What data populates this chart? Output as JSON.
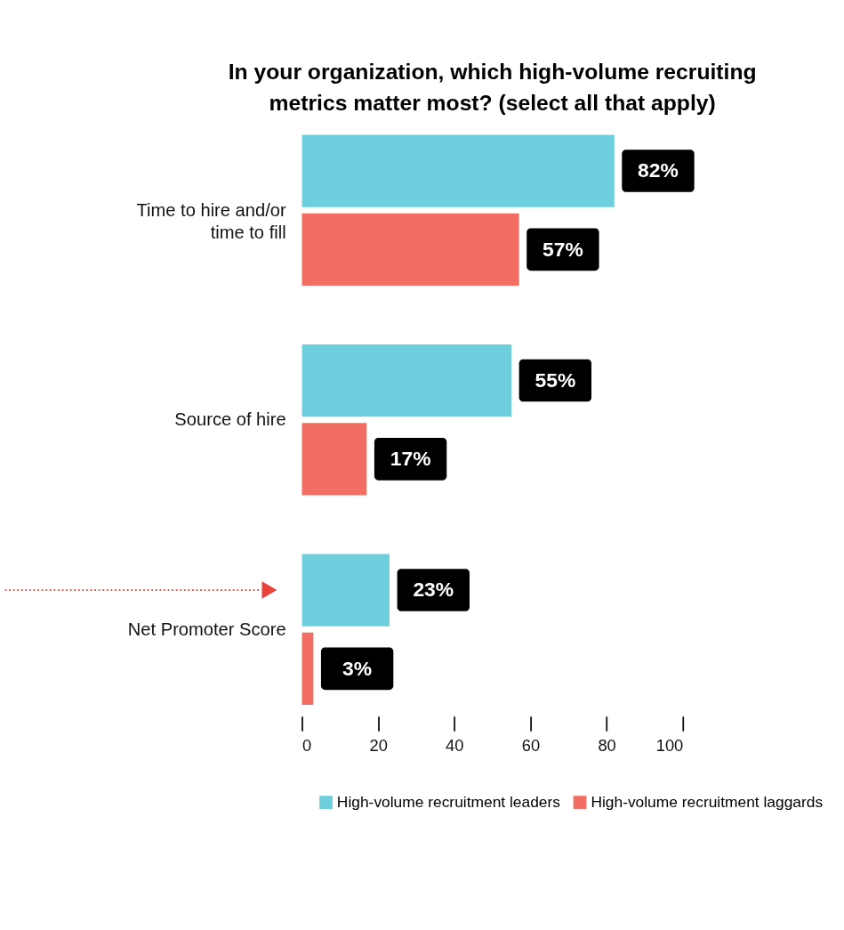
{
  "chart_data": {
    "type": "bar",
    "orientation": "horizontal",
    "title": "In your organization, which high-volume recruiting metrics matter most? (select all that apply)",
    "categories": [
      "Time to hire and/or time to fill",
      "Source of hire",
      "Net Promoter Score"
    ],
    "series": [
      {
        "name": "High-volume recruitment leaders",
        "color": "#6dcfdd",
        "values": [
          82,
          55,
          23
        ],
        "value_labels": [
          "82%",
          "55%",
          "23%"
        ]
      },
      {
        "name": "High-volume recruitment laggards",
        "color": "#f26e63",
        "values": [
          57,
          17,
          3
        ],
        "value_labels": [
          "57%",
          "17%",
          "3%"
        ]
      }
    ],
    "xlim": [
      0,
      100
    ],
    "xticks": [
      0,
      20,
      40,
      60,
      80,
      100
    ],
    "grid": false,
    "legend": "bottom"
  }
}
